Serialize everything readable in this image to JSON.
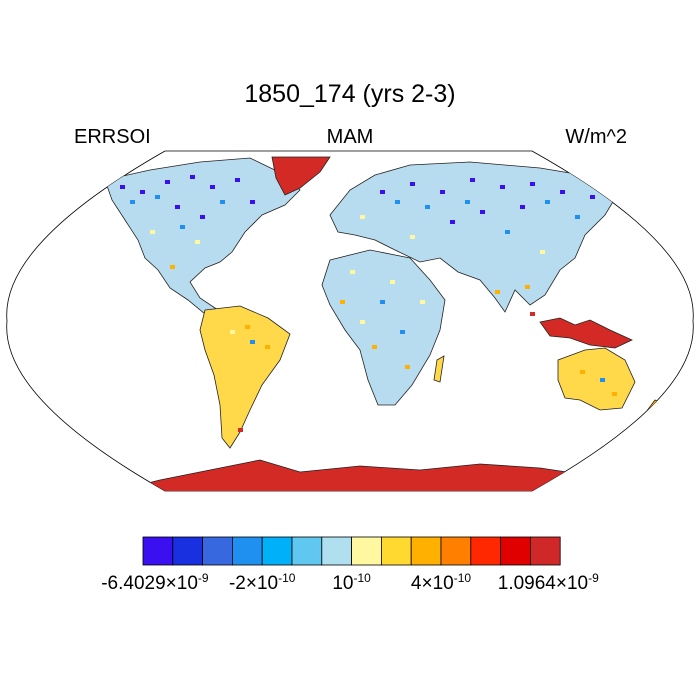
{
  "title": "1850_174 (yrs 2-3)",
  "left_label": "ERRSOI",
  "center_label": "MAM",
  "right_label": "W/m^2",
  "colorbar": {
    "colors": [
      "#3a10f0",
      "#1830e0",
      "#3868e0",
      "#2090f0",
      "#00b0f8",
      "#60c8f0",
      "#b0e0f0",
      "#fff8a0",
      "#ffd830",
      "#ffb000",
      "#ff8000",
      "#ff2800",
      "#e00000",
      "#d02828"
    ],
    "labels": [
      {
        "mantissa": "-6.4029×10",
        "exp": "-9"
      },
      {
        "mantissa": "-2×10",
        "exp": "-10"
      },
      {
        "mantissa": "10",
        "exp": "-10"
      },
      {
        "mantissa": "4×10",
        "exp": "-10"
      },
      {
        "mantissa": "1.0964×10",
        "exp": "-9"
      }
    ]
  }
}
